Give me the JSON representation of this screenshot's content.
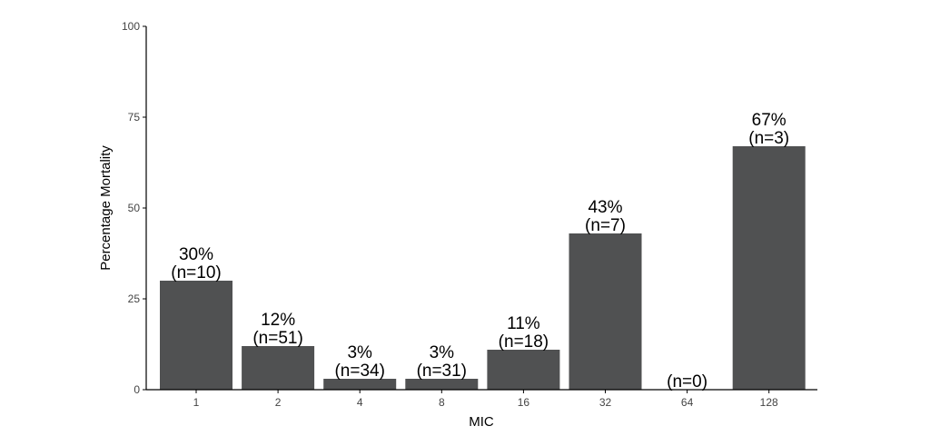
{
  "chart_data": {
    "type": "bar",
    "title": "",
    "xlabel": "MIC",
    "ylabel": "Percentage Mortality",
    "categories": [
      "1",
      "2",
      "4",
      "8",
      "16",
      "32",
      "64",
      "128"
    ],
    "values": [
      30,
      12,
      3,
      3,
      11,
      43,
      0,
      67
    ],
    "bar_labels": [
      {
        "pct": "30%",
        "n": "(n=10)"
      },
      {
        "pct": "12%",
        "n": "(n=51)"
      },
      {
        "pct": "3%",
        "n": "(n=34)"
      },
      {
        "pct": "3%",
        "n": "(n=31)"
      },
      {
        "pct": "11%",
        "n": "(n=18)"
      },
      {
        "pct": "43%",
        "n": "(n=7)"
      },
      {
        "pct": "",
        "n": "(n=0)"
      },
      {
        "pct": "67%",
        "n": "(n=3)"
      }
    ],
    "yticks": [
      "0",
      "25",
      "50",
      "75",
      "100"
    ],
    "ylim": [
      0,
      100
    ],
    "grid": false,
    "bar_color": "#505152"
  }
}
